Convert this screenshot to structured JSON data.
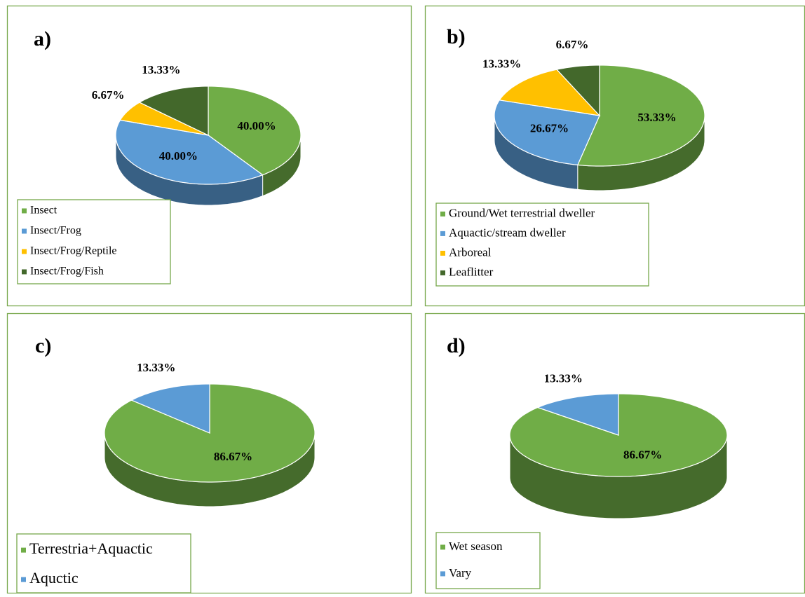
{
  "chart_data": [
    {
      "type": "pie",
      "title": "a)",
      "categories": [
        "Insect",
        "Insect/Frog",
        "Insect/Frog/Reptile",
        "Insect/Frog/Fish"
      ],
      "values": [
        40,
        40,
        6.67,
        13.33
      ],
      "value_labels": [
        "40.00%",
        "40.00%",
        "6.67%",
        "13.33%"
      ],
      "colors": [
        "#70ad47",
        "#5b9bd5",
        "#ffc000",
        "#43682b"
      ]
    },
    {
      "type": "pie",
      "title": "b)",
      "categories": [
        "Ground/Wet terrestrial dweller",
        "Aquactic/stream dweller",
        "Arboreal",
        "Leaflitter"
      ],
      "values": [
        53.33,
        26.67,
        13.33,
        6.67
      ],
      "value_labels": [
        "53.33%",
        "26.67%",
        "13.33%",
        "6.67%"
      ],
      "colors": [
        "#70ad47",
        "#5b9bd5",
        "#ffc000",
        "#43682b"
      ]
    },
    {
      "type": "pie",
      "title": "c)",
      "categories": [
        "Terrestria+Aquactic",
        "Aquctic"
      ],
      "values": [
        86.67,
        13.33
      ],
      "value_labels": [
        "86.67%",
        "13.33%"
      ],
      "colors": [
        "#70ad47",
        "#5b9bd5"
      ]
    },
    {
      "type": "pie",
      "title": "d)",
      "categories": [
        "Wet season",
        "Vary"
      ],
      "values": [
        86.67,
        13.33
      ],
      "value_labels": [
        "86.67%",
        "13.33%"
      ],
      "colors": [
        "#70ad47",
        "#5b9bd5"
      ]
    }
  ]
}
